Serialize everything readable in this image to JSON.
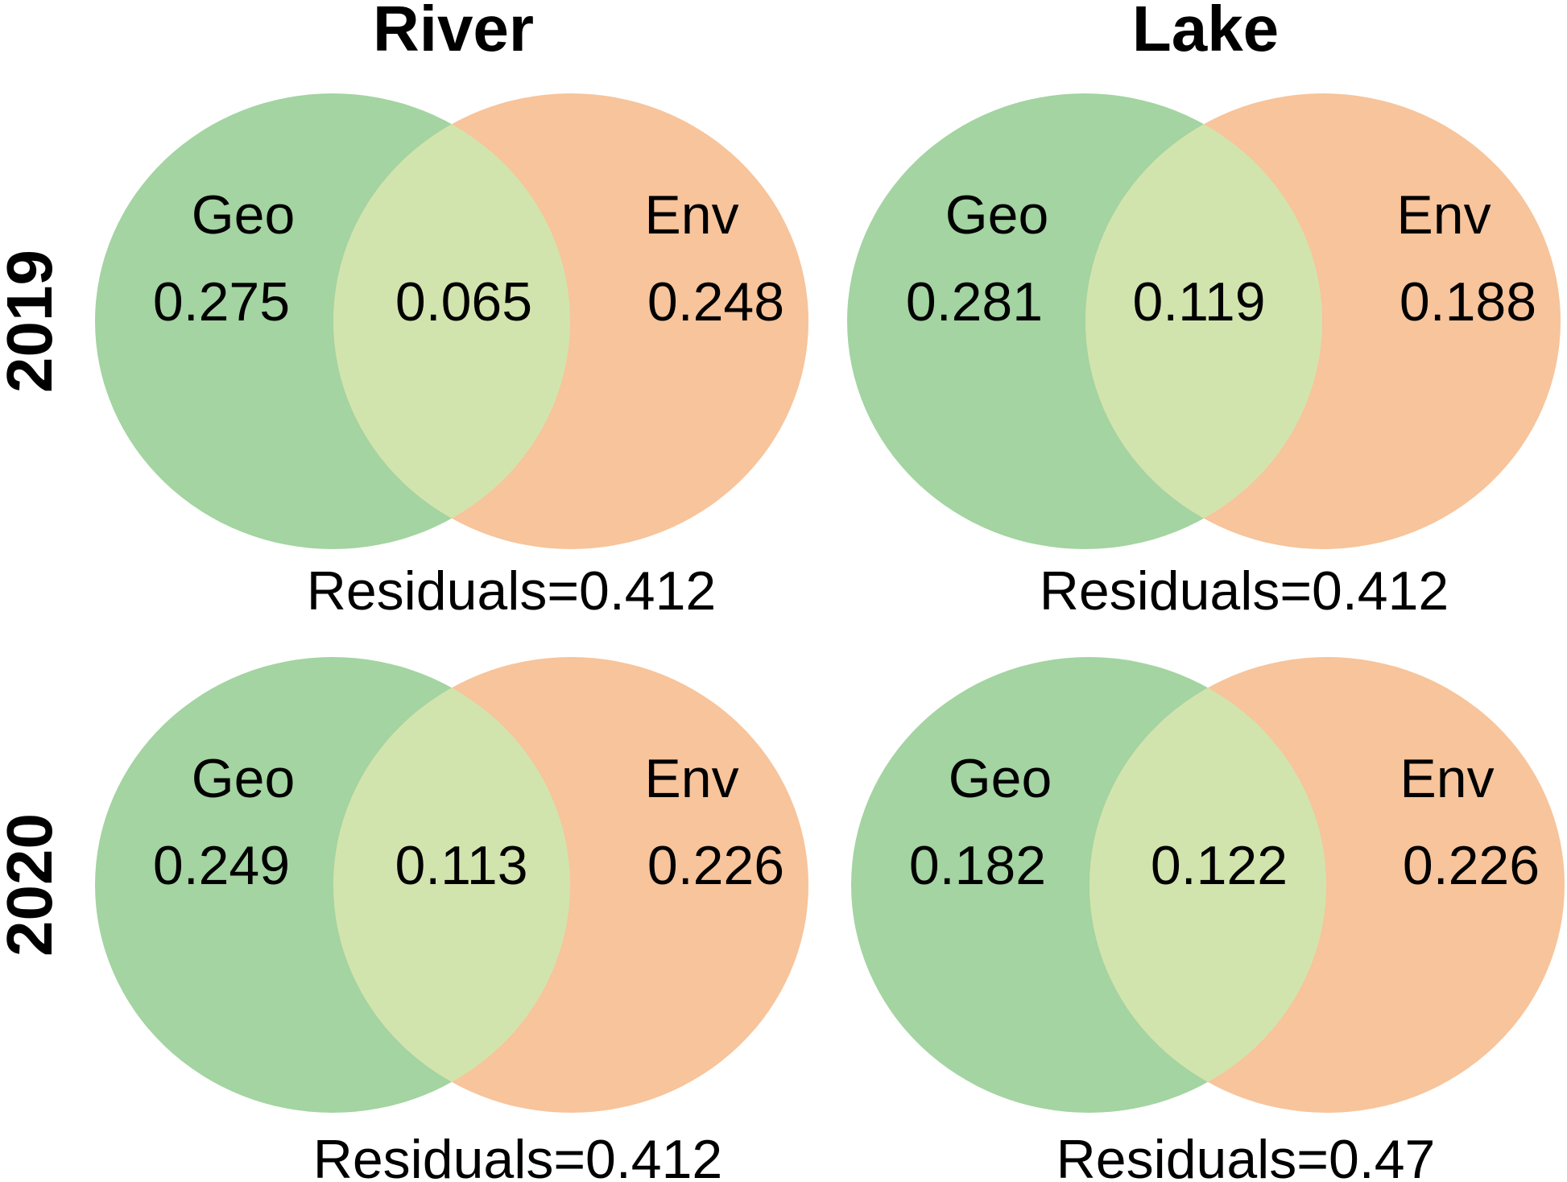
{
  "colors": {
    "geo": "#a3d4a1",
    "env": "#f7c49b",
    "overlap": "#d2e4ad"
  },
  "headers": {
    "columns": [
      "River",
      "Lake"
    ],
    "rows": [
      "2019",
      "2020"
    ]
  },
  "panels": [
    {
      "column": "River",
      "year": "2019",
      "geo_label": "Geo",
      "env_label": "Env",
      "geo_value": "0.275",
      "shared_value": "0.065",
      "env_value": "0.248",
      "residuals": "Residuals=0.412"
    },
    {
      "column": "Lake",
      "year": "2019",
      "geo_label": "Geo",
      "env_label": "Env",
      "geo_value": "0.281",
      "shared_value": "0.119",
      "env_value": "0.188",
      "residuals": "Residuals=0.412"
    },
    {
      "column": "River",
      "year": "2020",
      "geo_label": "Geo",
      "env_label": "Env",
      "geo_value": "0.249",
      "shared_value": "0.113",
      "env_value": "0.226",
      "residuals": "Residuals=0.412"
    },
    {
      "column": "Lake",
      "year": "2020",
      "geo_label": "Geo",
      "env_label": "Env",
      "geo_value": "0.182",
      "shared_value": "0.122",
      "env_value": "0.226",
      "residuals": "Residuals=0.47"
    }
  ]
}
